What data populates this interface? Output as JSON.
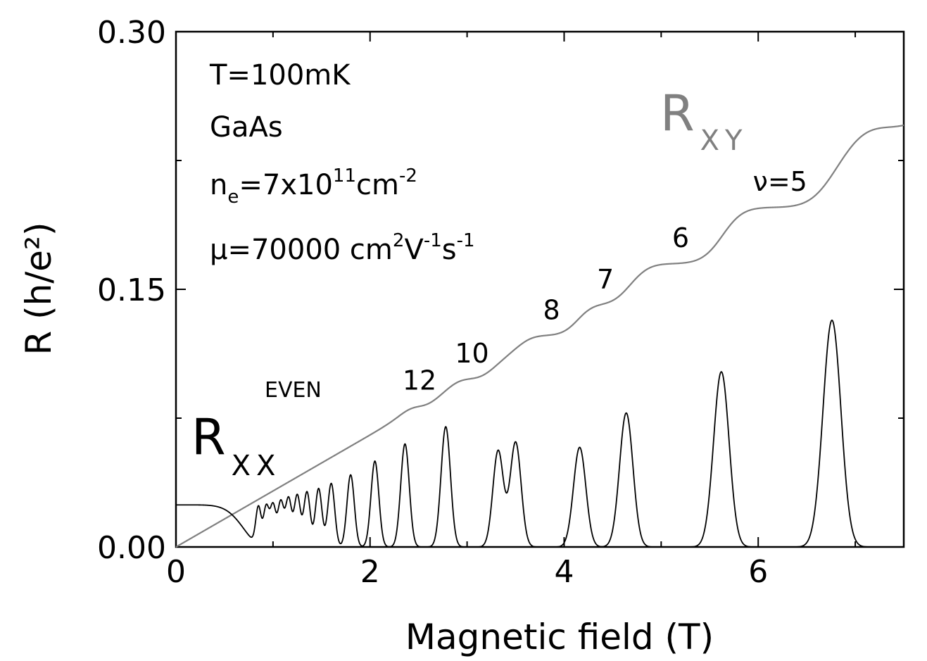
{
  "chart_data": {
    "type": "line",
    "xlabel": "Magnetic field (T)",
    "ylabel": "R (h/e²)",
    "xlim": [
      0,
      7.5
    ],
    "ylim": [
      0,
      0.3
    ],
    "x_ticks": [
      0,
      2,
      4,
      6
    ],
    "y_ticks": [
      0.0,
      0.15,
      0.3
    ],
    "x_tick_labels": [
      "0",
      "2",
      "4",
      "6"
    ],
    "y_tick_labels": [
      "0.00",
      "0.15",
      "0.30"
    ],
    "grid": false,
    "annotations": {
      "temperature": "T=100mK",
      "material": "GaAs",
      "density_prefix": "n",
      "density_sub": "e",
      "density_mid": "=7x10",
      "density_exp": "11",
      "density_unit": "cm",
      "density_unit_exp": "-2",
      "mobility_prefix": "μ=70000 cm",
      "mobility_exp1": "2",
      "mobility_v": "V",
      "mobility_exp2": "-1",
      "mobility_s": "s",
      "mobility_exp3": "-1",
      "even_label": "EVEN"
    },
    "series": [
      {
        "name": "R_XY",
        "label_main": "R",
        "label_sub": "XY",
        "color": "#808080",
        "plateaus": [
          {
            "nu": "12",
            "x": [
              2.4,
              2.62
            ],
            "y": 0.0818
          },
          {
            "nu": "10",
            "x": [
              2.9,
              3.2
            ],
            "y": 0.0976
          },
          {
            "nu": "8",
            "x": [
              3.62,
              4.12
            ],
            "y": 0.1228
          },
          {
            "nu": "7",
            "x": [
              4.25,
              4.6
            ],
            "y": 0.1405
          },
          {
            "nu": "6",
            "x": [
              4.8,
              5.6
            ],
            "y": 0.1647
          },
          {
            "nu": "ν=5",
            "x": [
              5.75,
              6.7
            ],
            "y": 0.1975
          },
          {
            "nu": "",
            "x": [
              7.0,
              7.5
            ],
            "y": 0.247
          }
        ]
      },
      {
        "name": "R_XX",
        "label_main": "R",
        "label_sub": "XX",
        "color": "#000000",
        "zero_field_value": 0.0245,
        "peaks": [
          {
            "x": 0.85,
            "y": 0.022
          },
          {
            "x": 0.93,
            "y": 0.023
          },
          {
            "x": 1.0,
            "y": 0.024
          },
          {
            "x": 1.08,
            "y": 0.026
          },
          {
            "x": 1.16,
            "y": 0.028
          },
          {
            "x": 1.25,
            "y": 0.03
          },
          {
            "x": 1.35,
            "y": 0.032
          },
          {
            "x": 1.47,
            "y": 0.034
          },
          {
            "x": 1.6,
            "y": 0.037
          },
          {
            "x": 1.8,
            "y": 0.042
          },
          {
            "x": 2.05,
            "y": 0.05
          },
          {
            "x": 2.36,
            "y": 0.06
          },
          {
            "x": 2.78,
            "y": 0.07
          },
          {
            "x": 3.32,
            "y": 0.056
          },
          {
            "x": 3.5,
            "y": 0.061
          },
          {
            "x": 4.16,
            "y": 0.058
          },
          {
            "x": 4.64,
            "y": 0.078
          },
          {
            "x": 5.62,
            "y": 0.102
          },
          {
            "x": 6.76,
            "y": 0.132
          }
        ]
      }
    ]
  }
}
